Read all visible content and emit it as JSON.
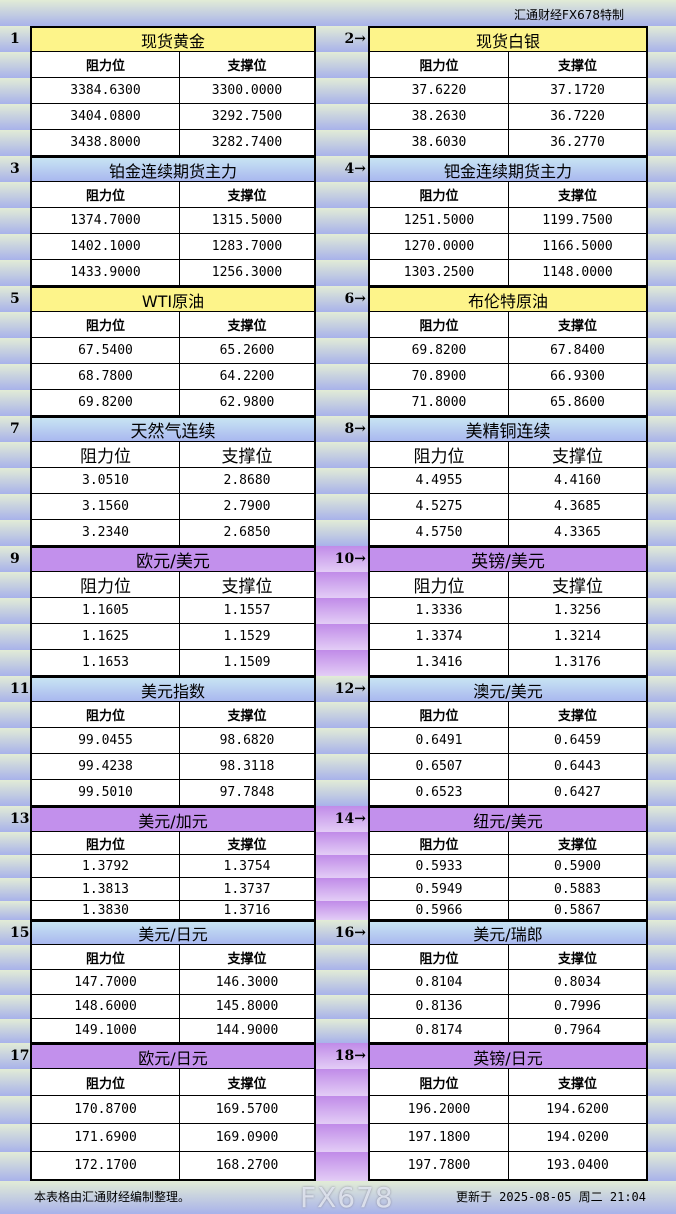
{
  "brand": "汇通财经FX678特制",
  "col_resistance": "阻力位",
  "col_support": "支撑位",
  "colors": {
    "yellow": "#fdf48a",
    "blue": "#b4c8f0",
    "purple": "#c290ec"
  },
  "sections": [
    {
      "num": "1",
      "title": "现货黄金",
      "color": "yellow",
      "rows": [
        [
          "3384.6300",
          "3300.0000"
        ],
        [
          "3404.0800",
          "3292.7500"
        ],
        [
          "3438.8000",
          "3282.7400"
        ]
      ]
    },
    {
      "num": "2→",
      "title": "现货白银",
      "color": "yellow",
      "rows": [
        [
          "37.6220",
          "37.1720"
        ],
        [
          "38.2630",
          "36.7220"
        ],
        [
          "38.6030",
          "36.2770"
        ]
      ]
    },
    {
      "num": "3",
      "title": "铂金连续期货主力",
      "color": "blue",
      "rows": [
        [
          "1374.7000",
          "1315.5000"
        ],
        [
          "1402.1000",
          "1283.7000"
        ],
        [
          "1433.9000",
          "1256.3000"
        ]
      ]
    },
    {
      "num": "4→",
      "title": "钯金连续期货主力",
      "color": "blue",
      "rows": [
        [
          "1251.5000",
          "1199.7500"
        ],
        [
          "1270.0000",
          "1166.5000"
        ],
        [
          "1303.2500",
          "1148.0000"
        ]
      ]
    },
    {
      "num": "5",
      "title": "WTI原油",
      "color": "yellow",
      "rows": [
        [
          "67.5400",
          "65.2600"
        ],
        [
          "68.7800",
          "64.2200"
        ],
        [
          "69.8200",
          "62.9800"
        ]
      ]
    },
    {
      "num": "6→",
      "title": "布伦特原油",
      "color": "yellow",
      "rows": [
        [
          "69.8200",
          "67.8400"
        ],
        [
          "70.8900",
          "66.9300"
        ],
        [
          "71.8000",
          "65.8600"
        ]
      ]
    },
    {
      "num": "7",
      "title": "天然气连续",
      "color": "blue",
      "rows": [
        [
          "3.0510",
          "2.8680"
        ],
        [
          "3.1560",
          "2.7900"
        ],
        [
          "3.2340",
          "2.6850"
        ]
      ]
    },
    {
      "num": "8→",
      "title": "美精铜连续",
      "color": "blue",
      "rows": [
        [
          "4.4955",
          "4.4160"
        ],
        [
          "4.5275",
          "4.3685"
        ],
        [
          "4.5750",
          "4.3365"
        ]
      ]
    },
    {
      "num": "9",
      "title": "欧元/美元",
      "color": "purple",
      "rows": [
        [
          "1.1605",
          "1.1557"
        ],
        [
          "1.1625",
          "1.1529"
        ],
        [
          "1.1653",
          "1.1509"
        ]
      ]
    },
    {
      "num": "10→",
      "title": "英镑/美元",
      "color": "purple",
      "rows": [
        [
          "1.3336",
          "1.3256"
        ],
        [
          "1.3374",
          "1.3214"
        ],
        [
          "1.3416",
          "1.3176"
        ]
      ]
    },
    {
      "num": "11",
      "title": "美元指数",
      "color": "blue",
      "rows": [
        [
          "99.0455",
          "98.6820"
        ],
        [
          "99.4238",
          "98.3118"
        ],
        [
          "99.5010",
          "97.7848"
        ]
      ]
    },
    {
      "num": "12→",
      "title": "澳元/美元",
      "color": "blue",
      "rows": [
        [
          "0.6491",
          "0.6459"
        ],
        [
          "0.6507",
          "0.6443"
        ],
        [
          "0.6523",
          "0.6427"
        ]
      ]
    },
    {
      "num": "13",
      "title": "美元/加元",
      "color": "purple",
      "rows": [
        [
          "1.3792",
          "1.3754"
        ],
        [
          "1.3813",
          "1.3737"
        ],
        [
          "1.3830",
          "1.3716"
        ]
      ]
    },
    {
      "num": "14→",
      "title": "纽元/美元",
      "color": "purple",
      "rows": [
        [
          "0.5933",
          "0.5900"
        ],
        [
          "0.5949",
          "0.5883"
        ],
        [
          "0.5966",
          "0.5867"
        ]
      ]
    },
    {
      "num": "15",
      "title": "美元/日元",
      "color": "blue",
      "rows": [
        [
          "147.7000",
          "146.3000"
        ],
        [
          "148.6000",
          "145.8000"
        ],
        [
          "149.1000",
          "144.9000"
        ]
      ]
    },
    {
      "num": "16→",
      "title": "美元/瑞郎",
      "color": "blue",
      "rows": [
        [
          "0.8104",
          "0.8034"
        ],
        [
          "0.8136",
          "0.7996"
        ],
        [
          "0.8174",
          "0.7964"
        ]
      ]
    },
    {
      "num": "17",
      "title": "欧元/日元",
      "color": "purple",
      "rows": [
        [
          "170.8700",
          "169.5700"
        ],
        [
          "171.6900",
          "169.0900"
        ],
        [
          "172.1700",
          "168.2700"
        ]
      ]
    },
    {
      "num": "18→",
      "title": "英镑/日元",
      "color": "purple",
      "rows": [
        [
          "196.2000",
          "194.6200"
        ],
        [
          "197.1800",
          "194.0200"
        ],
        [
          "197.7800",
          "193.0400"
        ]
      ]
    }
  ],
  "footer": {
    "note": "本表格由汇通财经编制整理。",
    "updated": "更新于 2025-08-05 周二 21:04",
    "watermark": "FX678"
  }
}
